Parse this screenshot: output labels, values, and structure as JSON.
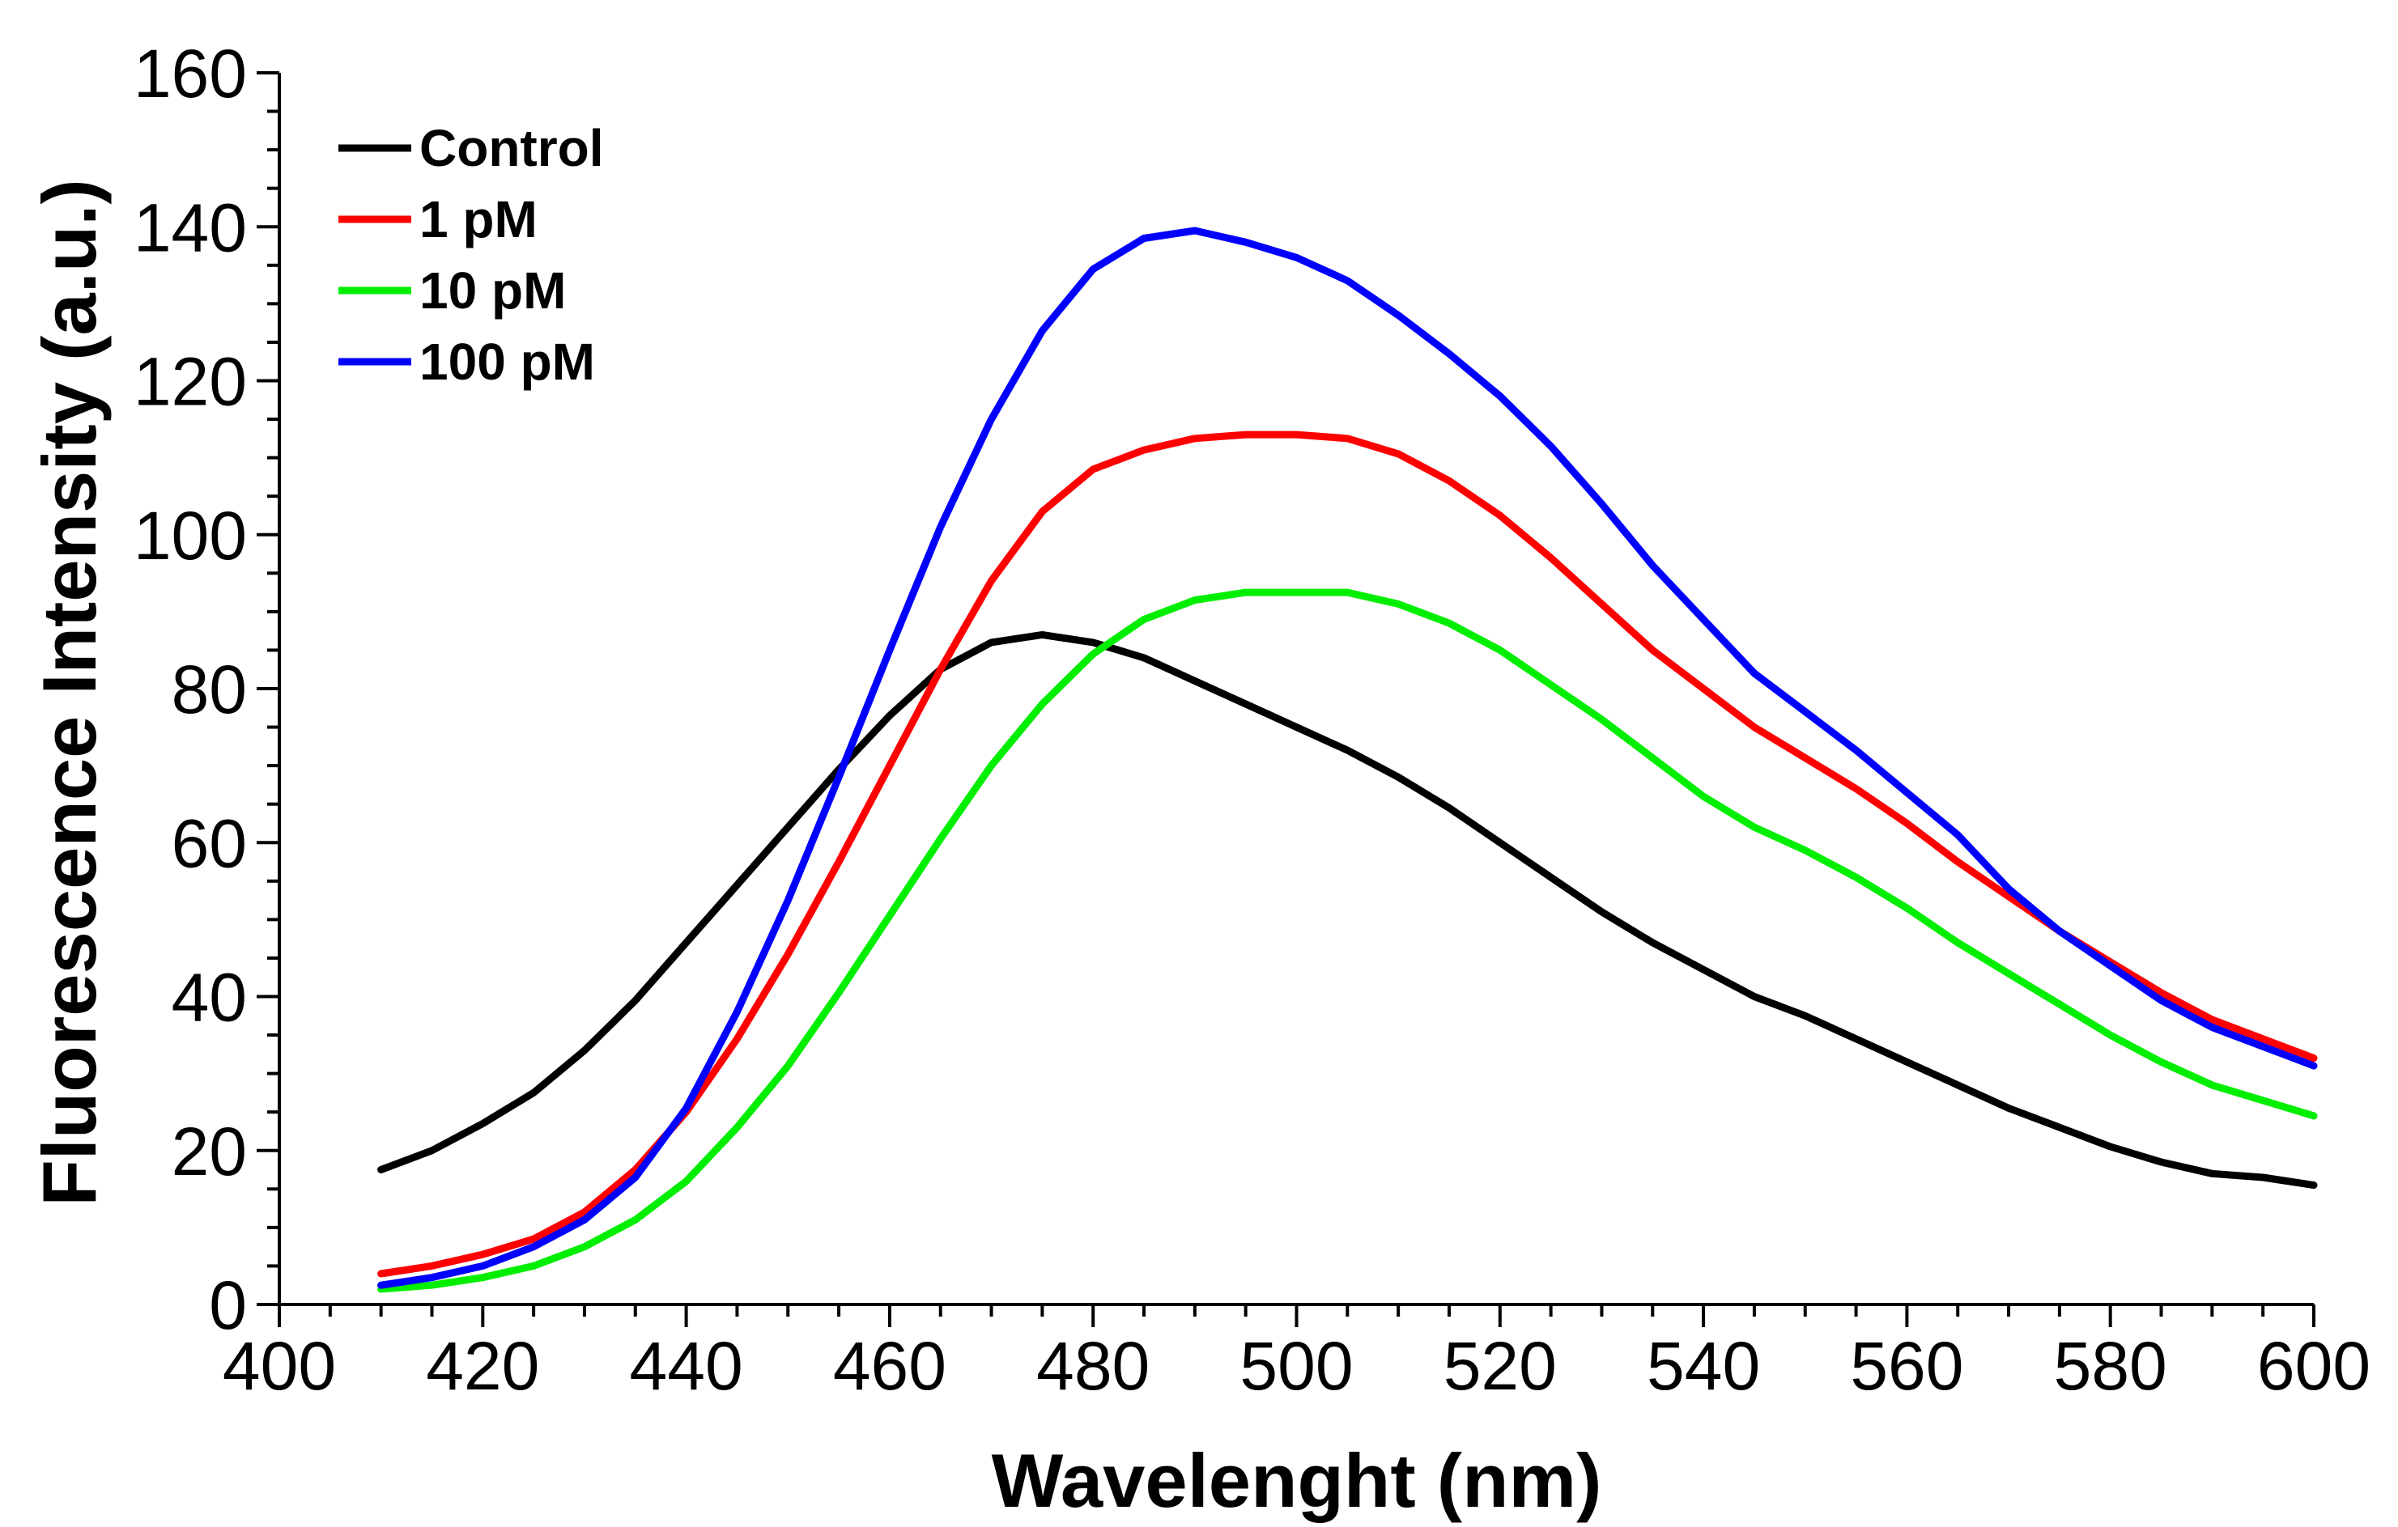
{
  "chart_data": {
    "type": "line",
    "title": "",
    "xlabel": "Wavelenght (nm)",
    "ylabel": "Fluorescence Intensity (a.u.)",
    "xlim": [
      400,
      600
    ],
    "ylim": [
      0,
      160
    ],
    "xticks": [
      400,
      420,
      440,
      460,
      480,
      500,
      520,
      540,
      560,
      580,
      600
    ],
    "yticks": [
      0,
      20,
      40,
      60,
      80,
      100,
      120,
      140,
      160
    ],
    "x_minor_step": 5,
    "y_minor_step": 5,
    "legend_position": "top-left",
    "series": [
      {
        "name": "Control",
        "color": "#000000",
        "x": [
          410,
          415,
          420,
          425,
          430,
          435,
          440,
          445,
          450,
          455,
          460,
          465,
          470,
          475,
          480,
          485,
          490,
          495,
          500,
          505,
          510,
          515,
          520,
          525,
          530,
          535,
          540,
          545,
          550,
          555,
          560,
          565,
          570,
          575,
          580,
          585,
          590,
          595,
          600
        ],
        "y": [
          17.5,
          20,
          23.5,
          27.5,
          33,
          39.5,
          47,
          54.5,
          62,
          69.5,
          76.5,
          82.5,
          86,
          87,
          86,
          84,
          81,
          78,
          75,
          72,
          68.5,
          64.5,
          60,
          55.5,
          51,
          47,
          43.5,
          40,
          37.5,
          34.5,
          31.5,
          28.5,
          25.5,
          23,
          20.5,
          18.5,
          17,
          16.5,
          15.5
        ]
      },
      {
        "name": "1 pM",
        "color": "#ff0000",
        "x": [
          410,
          415,
          420,
          425,
          430,
          435,
          440,
          445,
          450,
          455,
          460,
          465,
          470,
          475,
          480,
          485,
          490,
          495,
          500,
          505,
          510,
          515,
          520,
          525,
          530,
          535,
          540,
          545,
          550,
          555,
          560,
          565,
          570,
          575,
          580,
          585,
          590,
          595,
          600
        ],
        "y": [
          4,
          5,
          6.5,
          8.5,
          12,
          17.5,
          25,
          34.5,
          45.5,
          57.5,
          70,
          82.5,
          94,
          103,
          108.5,
          111,
          112.5,
          113,
          113,
          112.5,
          110.5,
          107,
          102.5,
          97,
          91,
          85,
          80,
          75,
          71,
          67,
          62.5,
          57.5,
          53,
          48.5,
          44.5,
          40.5,
          37,
          34.5,
          32
        ]
      },
      {
        "name": "10 pM",
        "color": "#00ee00",
        "x": [
          410,
          415,
          420,
          425,
          430,
          435,
          440,
          445,
          450,
          455,
          460,
          465,
          470,
          475,
          480,
          485,
          490,
          495,
          500,
          505,
          510,
          515,
          520,
          525,
          530,
          535,
          540,
          545,
          550,
          555,
          560,
          565,
          570,
          575,
          580,
          585,
          590,
          595,
          600
        ],
        "y": [
          2,
          2.5,
          3.5,
          5,
          7.5,
          11,
          16,
          23,
          31,
          40.5,
          50.5,
          60.5,
          70,
          78,
          84.5,
          89,
          91.5,
          92.5,
          92.5,
          92.5,
          91,
          88.5,
          85,
          80.5,
          76,
          71,
          66,
          62,
          59,
          55.5,
          51.5,
          47,
          43,
          39,
          35,
          31.5,
          28.5,
          26.5,
          24.5
        ]
      },
      {
        "name": "100 pM",
        "color": "#0000ff",
        "x": [
          410,
          415,
          420,
          425,
          430,
          435,
          440,
          445,
          450,
          455,
          460,
          465,
          470,
          475,
          480,
          485,
          490,
          495,
          500,
          505,
          510,
          515,
          520,
          525,
          530,
          535,
          540,
          545,
          550,
          555,
          560,
          565,
          570,
          575,
          580,
          585,
          590,
          595,
          600
        ],
        "y": [
          2.5,
          3.5,
          5,
          7.5,
          11,
          16.5,
          25.5,
          38,
          52.5,
          68.5,
          85,
          101,
          115,
          126.5,
          134.5,
          138.5,
          139.5,
          138,
          136,
          133,
          128.5,
          123.5,
          118,
          111.5,
          104,
          96,
          89,
          82,
          77,
          72,
          66.5,
          61,
          54,
          48.5,
          44,
          39.5,
          36,
          33.5,
          31
        ]
      }
    ]
  }
}
